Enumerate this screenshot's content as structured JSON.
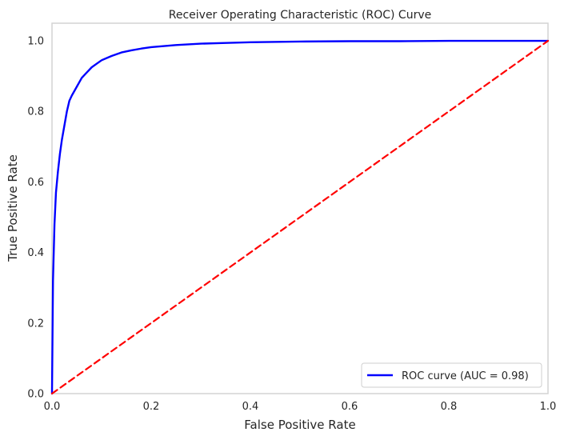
{
  "chart_data": {
    "type": "line",
    "title": "Receiver Operating Characteristic (ROC) Curve",
    "xlabel": "False Positive Rate",
    "ylabel": "True Positive Rate",
    "xlim": [
      0.0,
      1.0
    ],
    "ylim": [
      0.0,
      1.05
    ],
    "x_ticks": [
      0.0,
      0.2,
      0.4,
      0.6,
      0.8,
      1.0
    ],
    "y_ticks": [
      0.0,
      0.2,
      0.4,
      0.6,
      0.8,
      1.0
    ],
    "x_tick_labels": [
      "0.0",
      "0.2",
      "0.4",
      "0.6",
      "0.8",
      "1.0"
    ],
    "y_tick_labels": [
      "0.0",
      "0.2",
      "0.4",
      "0.6",
      "0.8",
      "1.0"
    ],
    "grid": false,
    "legend": {
      "placement": "bottom-right",
      "entries": [
        "ROC curve (AUC = 0.98)"
      ]
    },
    "series": [
      {
        "name": "ROC curve (AUC = 0.98)",
        "color": "#0000ff",
        "style": "solid",
        "x": [
          0.0,
          0.002,
          0.005,
          0.008,
          0.012,
          0.016,
          0.02,
          0.025,
          0.03,
          0.035,
          0.04,
          0.05,
          0.06,
          0.07,
          0.08,
          0.09,
          0.1,
          0.12,
          0.14,
          0.16,
          0.18,
          0.2,
          0.25,
          0.3,
          0.35,
          0.4,
          0.5,
          0.6,
          0.7,
          0.8,
          0.9,
          1.0
        ],
        "y": [
          0.0,
          0.32,
          0.48,
          0.57,
          0.63,
          0.68,
          0.72,
          0.76,
          0.8,
          0.83,
          0.845,
          0.87,
          0.895,
          0.91,
          0.925,
          0.935,
          0.945,
          0.957,
          0.967,
          0.973,
          0.978,
          0.982,
          0.988,
          0.992,
          0.994,
          0.996,
          0.998,
          0.999,
          0.999,
          1.0,
          1.0,
          1.0
        ]
      },
      {
        "name": "",
        "color": "#ff0000",
        "style": "dashed",
        "x": [
          0.0,
          1.0
        ],
        "y": [
          0.0,
          1.0
        ]
      }
    ]
  }
}
